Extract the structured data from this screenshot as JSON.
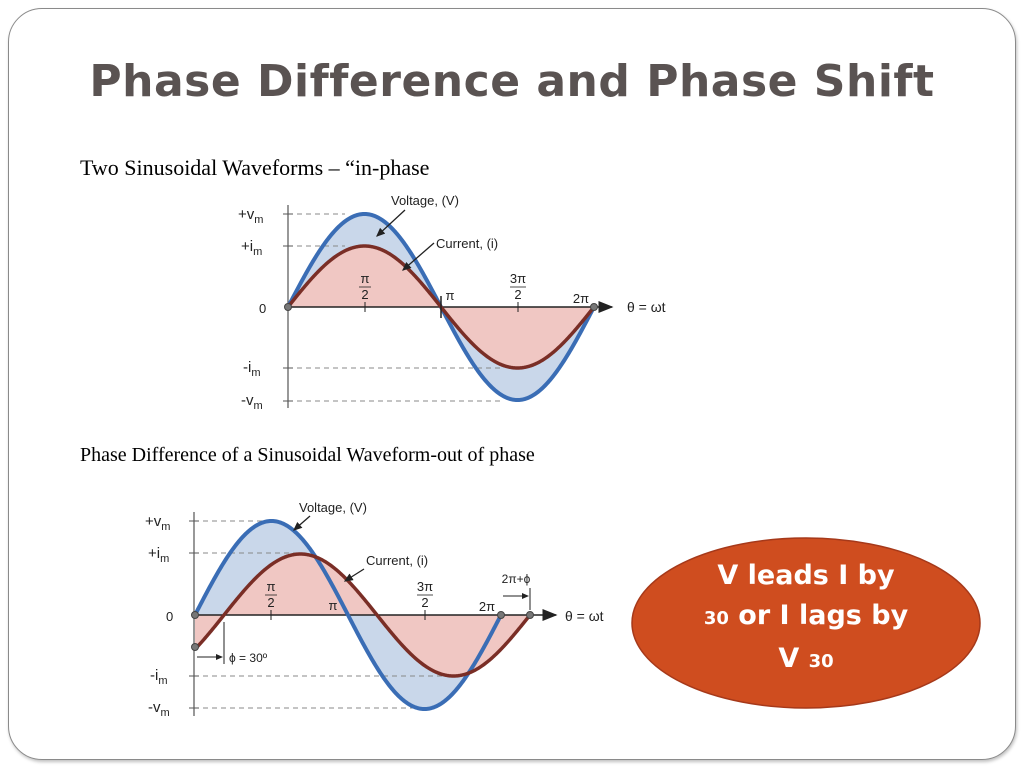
{
  "title": "Phase Difference and Phase Shift",
  "section1": {
    "heading": "Two Sinusoidal Waveforms – “in-phase",
    "labels": {
      "plus_vm": "+v",
      "plus_im": "+i",
      "zero": "0",
      "minus_im": "-i",
      "minus_vm": "-v",
      "sub_m": "m",
      "voltage": "Voltage, (V)",
      "current": "Current, (i)",
      "pi_over_2_num": "π",
      "pi_over_2_den": "2",
      "pi": "π",
      "three_pi_over_2_num": "3π",
      "three_pi_over_2_den": "2",
      "two_pi": "2π",
      "theta": "θ = ωt"
    }
  },
  "section2": {
    "heading": "Phase Difference of a Sinusoidal Waveform-out of phase",
    "labels": {
      "plus_vm": "+v",
      "plus_im": "+i",
      "zero": "0",
      "minus_im": "-i",
      "minus_vm": "-v",
      "sub_m": "m",
      "voltage": "Voltage, (V)",
      "current": "Current, (i)",
      "pi_over_2_num": "π",
      "pi_over_2_den": "2",
      "pi": "π",
      "three_pi_over_2_num": "3π",
      "three_pi_over_2_den": "2",
      "two_pi": "2π",
      "two_pi_phi": "2π+ϕ",
      "theta": "θ = ωt",
      "phi": "ϕ = 30º"
    }
  },
  "callout": {
    "line1": "V leads I by",
    "line2_num": "30",
    "line2_text": " or I lags by",
    "line3_text": "V ",
    "line3_num": "30"
  },
  "colors": {
    "voltage": "#3a6db5",
    "current": "#7a2e26",
    "voltage_fill": "#c9d7ea",
    "current_fill": "#f0c7c3",
    "callout": "#cf4d1f",
    "title": "#5a5352"
  }
}
